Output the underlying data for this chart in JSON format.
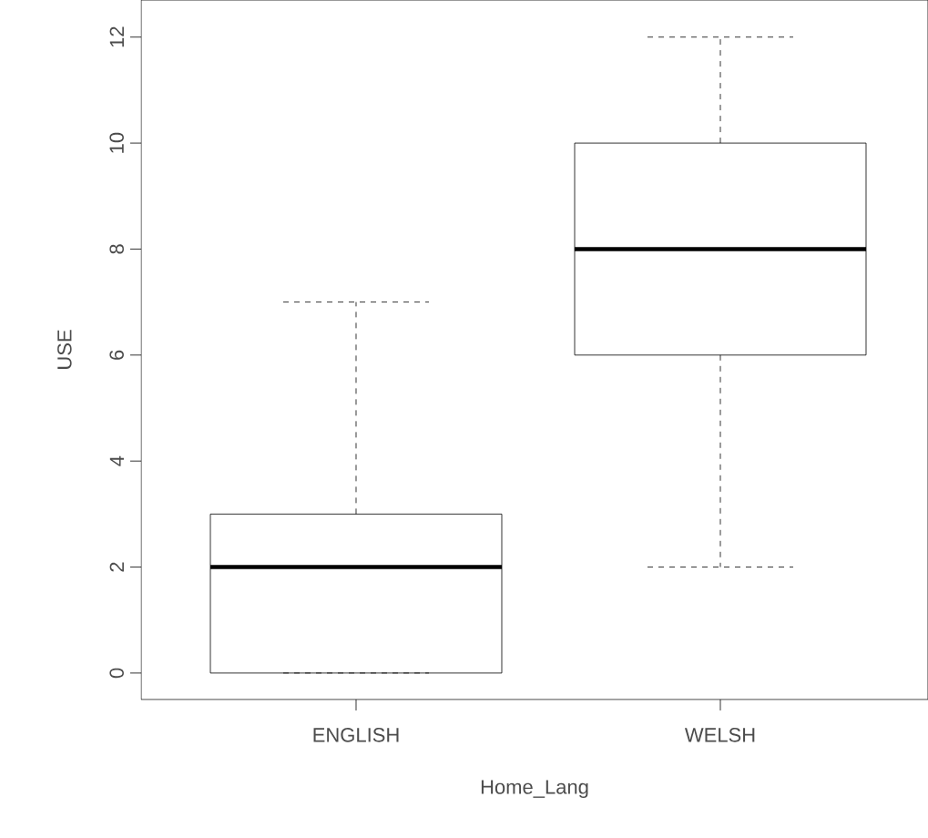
{
  "chart_data": {
    "type": "box",
    "xlabel": "Home_Lang",
    "ylabel": "USE",
    "categories": [
      "ENGLISH",
      "WELSH"
    ],
    "boxes": [
      {
        "low": 0,
        "q1": 0,
        "median": 2,
        "q3": 3,
        "high": 7
      },
      {
        "low": 2,
        "q1": 6,
        "median": 8,
        "q3": 10,
        "high": 12
      }
    ],
    "ylim": [
      -0.5,
      12.7
    ],
    "yticks": [
      0,
      2,
      4,
      6,
      8,
      10,
      12
    ]
  }
}
